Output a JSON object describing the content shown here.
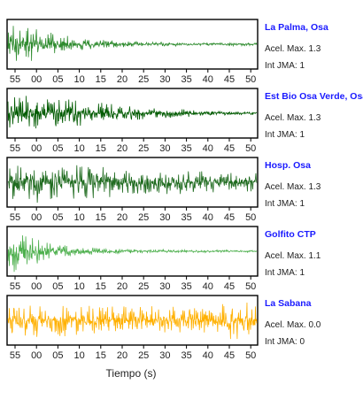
{
  "chart_data": {
    "type": "line",
    "xlabel": "Tiempo (s)",
    "x_tick_labels": [
      "55",
      "00",
      "05",
      "10",
      "15",
      "20",
      "25",
      "30",
      "35",
      "40",
      "45",
      "50"
    ],
    "series": [
      {
        "name": "La Palma, Osa",
        "peak_label": "Acel. Max. 1.3",
        "intensity_label": "Int JMA: 1",
        "color": "#2e8b2e",
        "envelope": [
          [
            0.0,
            0.9
          ],
          [
            0.05,
            1.0
          ],
          [
            0.15,
            0.6
          ],
          [
            0.3,
            0.3
          ],
          [
            0.5,
            0.12
          ],
          [
            0.75,
            0.08
          ],
          [
            1.0,
            0.07
          ]
        ]
      },
      {
        "name": "Est Bio Osa Verde, Osa",
        "peak_label": "Acel. Max. 1.3",
        "intensity_label": "Int JMA: 1",
        "color": "#005a00",
        "envelope": [
          [
            0.0,
            0.7
          ],
          [
            0.05,
            0.9
          ],
          [
            0.2,
            0.75
          ],
          [
            0.4,
            0.45
          ],
          [
            0.6,
            0.25
          ],
          [
            0.8,
            0.12
          ],
          [
            1.0,
            0.08
          ]
        ]
      },
      {
        "name": "Hosp. Osa",
        "peak_label": "Acel. Max. 1.3",
        "intensity_label": "Int JMA: 1",
        "color": "#1f6b1f",
        "envelope": [
          [
            0.0,
            0.9
          ],
          [
            0.1,
            1.0
          ],
          [
            0.3,
            0.8
          ],
          [
            0.5,
            0.6
          ],
          [
            0.7,
            0.55
          ],
          [
            0.85,
            0.5
          ],
          [
            1.0,
            0.45
          ]
        ]
      },
      {
        "name": "Golfito CTP",
        "peak_label": "Acel. Max. 1.1",
        "intensity_label": "Int JMA: 1",
        "color": "#4caf4c",
        "envelope": [
          [
            0.0,
            1.0
          ],
          [
            0.06,
            0.9
          ],
          [
            0.15,
            0.45
          ],
          [
            0.3,
            0.2
          ],
          [
            0.5,
            0.1
          ],
          [
            0.75,
            0.06
          ],
          [
            1.0,
            0.05
          ]
        ]
      },
      {
        "name": "La Sabana",
        "peak_label": "Acel. Max. 0.0",
        "intensity_label": "Int JMA: 0",
        "color": "#ffb000",
        "envelope": [
          [
            0.0,
            0.8
          ],
          [
            0.2,
            0.75
          ],
          [
            0.4,
            0.7
          ],
          [
            0.6,
            0.65
          ],
          [
            0.8,
            0.7
          ],
          [
            0.92,
            0.95
          ],
          [
            1.0,
            0.7
          ]
        ]
      }
    ]
  }
}
